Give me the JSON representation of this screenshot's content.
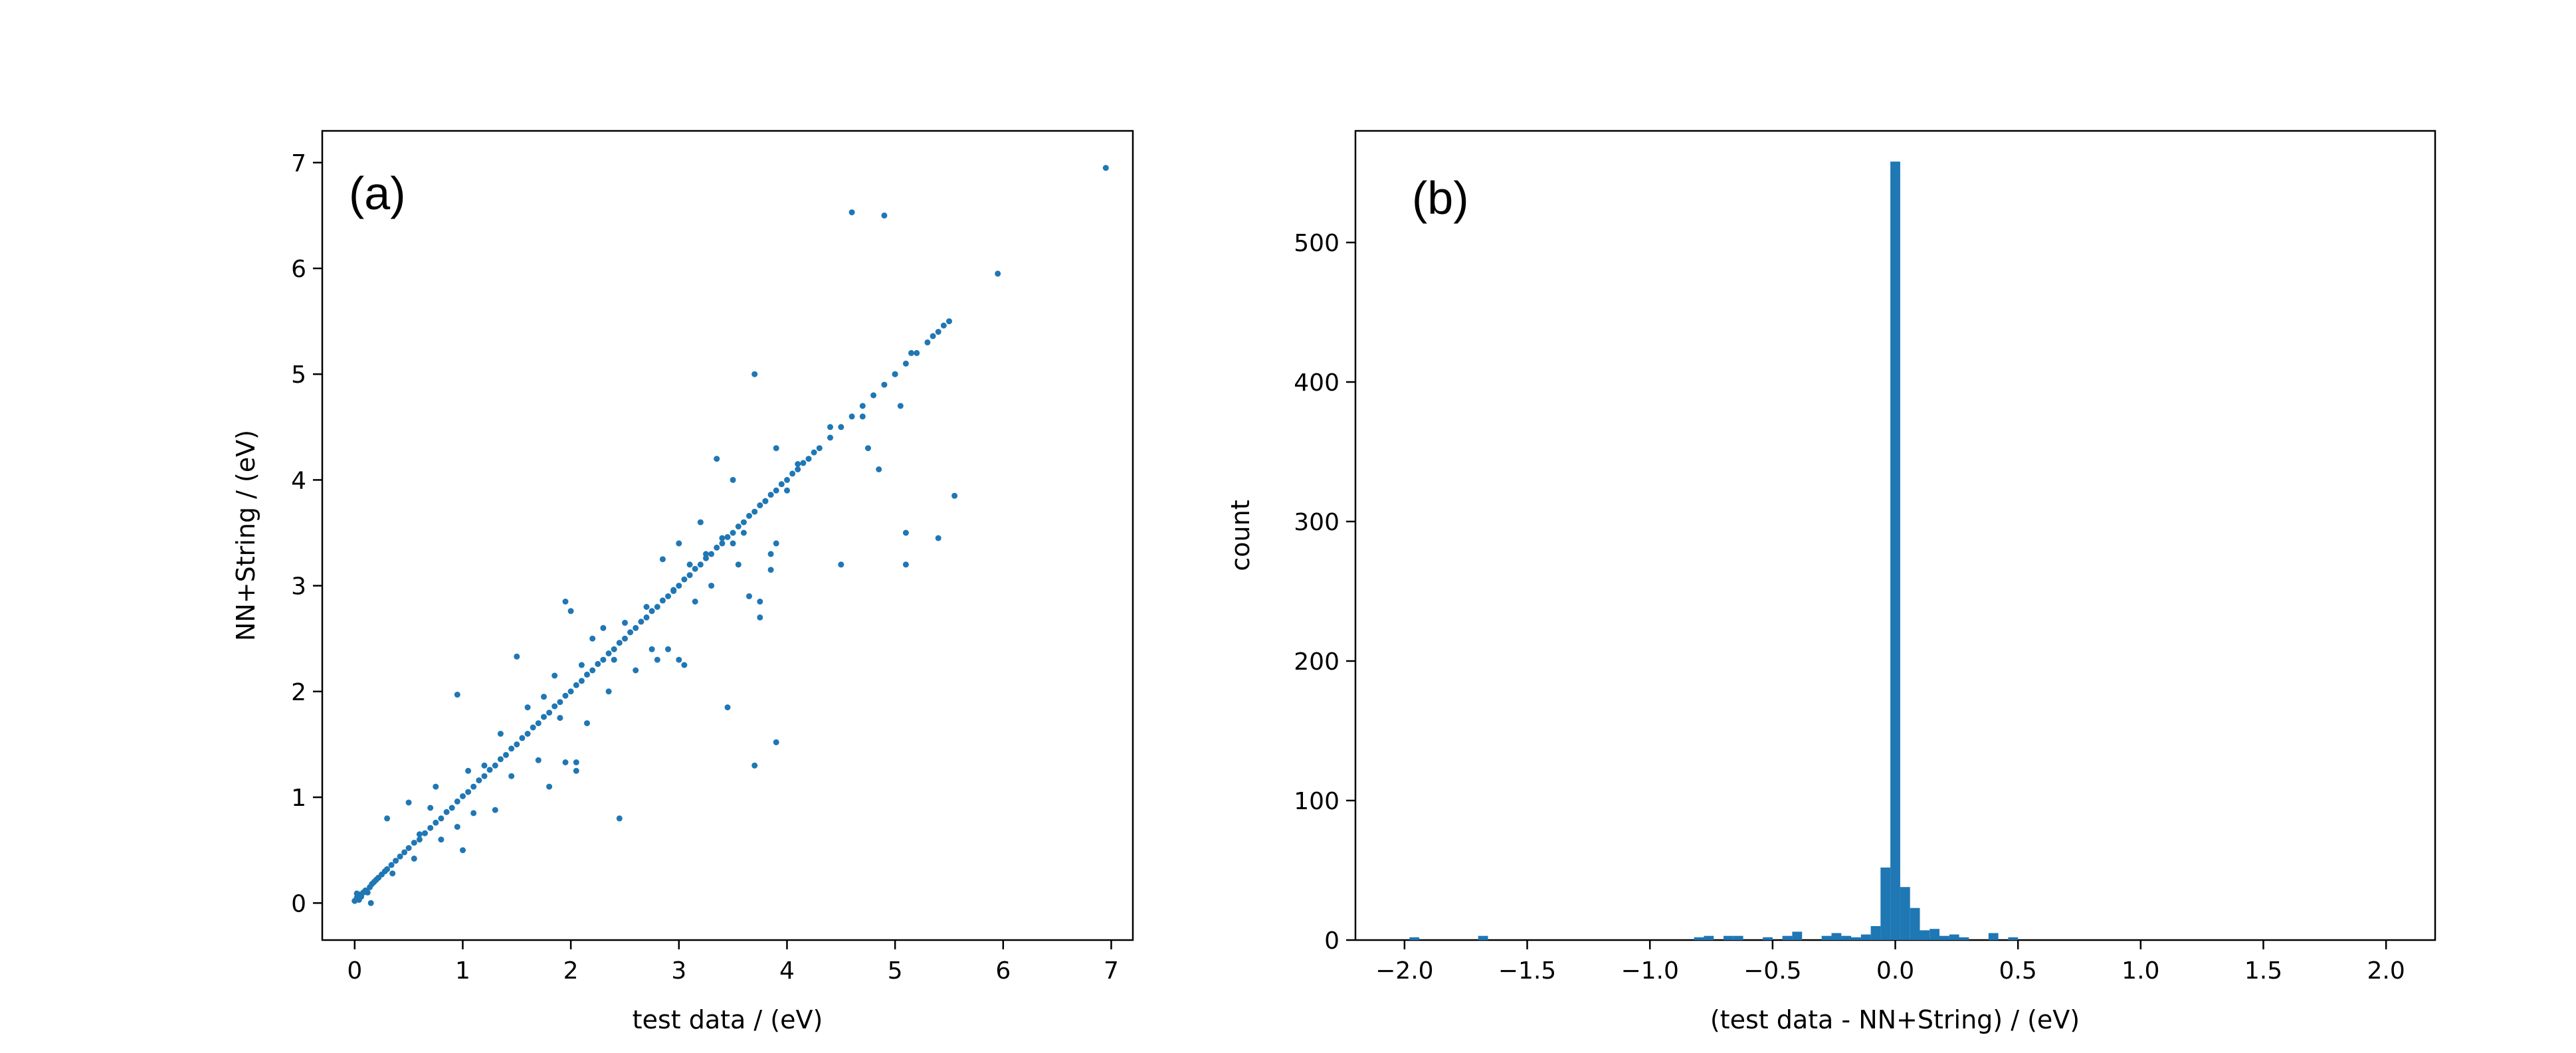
{
  "chart_data": [
    {
      "type": "scatter",
      "panel_label": "(a)",
      "xlabel": "test data / (eV)",
      "ylabel": "NN+String / (eV)",
      "xlim": [
        -0.3,
        7.2
      ],
      "ylim": [
        -0.35,
        7.3
      ],
      "xticks": [
        0,
        1,
        2,
        3,
        4,
        5,
        6,
        7
      ],
      "yticks": [
        0,
        1,
        2,
        3,
        4,
        5,
        6,
        7
      ],
      "xtick_labels": [
        "0",
        "1",
        "2",
        "3",
        "4",
        "5",
        "6",
        "7"
      ],
      "ytick_labels": [
        "0",
        "1",
        "2",
        "3",
        "4",
        "5",
        "6",
        "7"
      ],
      "grid": false,
      "marker_color": "#1f77b4",
      "series": [
        {
          "points": [
            [
              0.0,
              0.02
            ],
            [
              0.02,
              0.05
            ],
            [
              0.04,
              0.03
            ],
            [
              0.05,
              0.08
            ],
            [
              0.06,
              0.06
            ],
            [
              0.08,
              0.1
            ],
            [
              0.1,
              0.12
            ],
            [
              0.12,
              0.1
            ],
            [
              0.14,
              0.15
            ],
            [
              0.16,
              0.18
            ],
            [
              0.18,
              0.2
            ],
            [
              0.2,
              0.22
            ],
            [
              0.22,
              0.24
            ],
            [
              0.25,
              0.27
            ],
            [
              0.28,
              0.3
            ],
            [
              0.3,
              0.32
            ],
            [
              0.34,
              0.36
            ],
            [
              0.38,
              0.4
            ],
            [
              0.42,
              0.44
            ],
            [
              0.46,
              0.48
            ],
            [
              0.5,
              0.52
            ],
            [
              0.55,
              0.57
            ],
            [
              0.6,
              0.6
            ],
            [
              0.65,
              0.66
            ],
            [
              0.7,
              0.71
            ],
            [
              0.75,
              0.76
            ],
            [
              0.8,
              0.8
            ],
            [
              0.85,
              0.86
            ],
            [
              0.9,
              0.9
            ],
            [
              0.95,
              0.96
            ],
            [
              1.0,
              1.01
            ],
            [
              1.05,
              1.05
            ],
            [
              1.1,
              1.1
            ],
            [
              1.15,
              1.16
            ],
            [
              1.2,
              1.2
            ],
            [
              1.25,
              1.26
            ],
            [
              1.3,
              1.3
            ],
            [
              1.35,
              1.36
            ],
            [
              1.4,
              1.4
            ],
            [
              1.45,
              1.46
            ],
            [
              1.5,
              1.5
            ],
            [
              1.55,
              1.56
            ],
            [
              1.6,
              1.6
            ],
            [
              1.65,
              1.66
            ],
            [
              1.7,
              1.7
            ],
            [
              1.75,
              1.76
            ],
            [
              1.8,
              1.8
            ],
            [
              1.85,
              1.86
            ],
            [
              1.9,
              1.9
            ],
            [
              1.95,
              1.96
            ],
            [
              2.0,
              2.0
            ],
            [
              2.05,
              2.06
            ],
            [
              2.1,
              2.1
            ],
            [
              2.15,
              2.16
            ],
            [
              2.2,
              2.2
            ],
            [
              2.25,
              2.26
            ],
            [
              2.3,
              2.3
            ],
            [
              2.35,
              2.36
            ],
            [
              2.4,
              2.4
            ],
            [
              2.45,
              2.46
            ],
            [
              2.5,
              2.5
            ],
            [
              2.55,
              2.56
            ],
            [
              2.6,
              2.6
            ],
            [
              2.65,
              2.66
            ],
            [
              2.7,
              2.7
            ],
            [
              2.75,
              2.76
            ],
            [
              2.8,
              2.8
            ],
            [
              2.85,
              2.86
            ],
            [
              2.9,
              2.9
            ],
            [
              2.95,
              2.96
            ],
            [
              3.0,
              3.0
            ],
            [
              3.05,
              3.06
            ],
            [
              3.1,
              3.1
            ],
            [
              3.15,
              3.16
            ],
            [
              3.2,
              3.2
            ],
            [
              3.25,
              3.26
            ],
            [
              3.3,
              3.3
            ],
            [
              3.35,
              3.36
            ],
            [
              3.4,
              3.4
            ],
            [
              3.45,
              3.46
            ],
            [
              3.5,
              3.5
            ],
            [
              3.55,
              3.56
            ],
            [
              3.6,
              3.6
            ],
            [
              3.65,
              3.66
            ],
            [
              3.7,
              3.7
            ],
            [
              3.75,
              3.76
            ],
            [
              3.8,
              3.8
            ],
            [
              3.85,
              3.86
            ],
            [
              3.9,
              3.9
            ],
            [
              3.95,
              3.96
            ],
            [
              4.0,
              4.0
            ],
            [
              4.05,
              4.06
            ],
            [
              4.1,
              4.1
            ],
            [
              4.15,
              4.16
            ],
            [
              4.2,
              4.2
            ],
            [
              4.25,
              4.26
            ],
            [
              4.3,
              4.3
            ],
            [
              4.4,
              4.4
            ],
            [
              4.5,
              4.5
            ],
            [
              4.6,
              4.6
            ],
            [
              4.7,
              4.7
            ],
            [
              4.8,
              4.8
            ],
            [
              4.9,
              4.9
            ],
            [
              5.0,
              5.0
            ],
            [
              5.1,
              5.1
            ],
            [
              5.2,
              5.2
            ],
            [
              5.3,
              5.3
            ],
            [
              5.35,
              5.36
            ],
            [
              5.4,
              5.4
            ],
            [
              5.45,
              5.46
            ],
            [
              5.5,
              5.5
            ],
            [
              0.02,
              0.09
            ],
            [
              0.15,
              0.0
            ],
            [
              0.3,
              0.8
            ],
            [
              0.35,
              0.28
            ],
            [
              0.5,
              0.95
            ],
            [
              0.55,
              0.42
            ],
            [
              0.6,
              0.65
            ],
            [
              0.7,
              0.9
            ],
            [
              0.75,
              1.1
            ],
            [
              0.8,
              0.6
            ],
            [
              0.95,
              1.97
            ],
            [
              0.95,
              0.72
            ],
            [
              1.0,
              0.5
            ],
            [
              1.05,
              1.25
            ],
            [
              1.1,
              0.85
            ],
            [
              1.2,
              1.3
            ],
            [
              1.3,
              0.88
            ],
            [
              1.35,
              1.6
            ],
            [
              1.45,
              1.2
            ],
            [
              1.5,
              2.33
            ],
            [
              1.6,
              1.85
            ],
            [
              1.7,
              1.35
            ],
            [
              1.75,
              1.95
            ],
            [
              1.8,
              1.1
            ],
            [
              1.85,
              2.15
            ],
            [
              1.9,
              1.75
            ],
            [
              1.95,
              2.85
            ],
            [
              1.95,
              1.33
            ],
            [
              2.0,
              2.76
            ],
            [
              2.05,
              1.33
            ],
            [
              2.05,
              1.25
            ],
            [
              2.1,
              2.25
            ],
            [
              2.15,
              1.7
            ],
            [
              2.2,
              2.5
            ],
            [
              2.3,
              2.6
            ],
            [
              2.35,
              2.0
            ],
            [
              2.4,
              2.3
            ],
            [
              2.45,
              0.8
            ],
            [
              2.5,
              2.65
            ],
            [
              2.6,
              2.2
            ],
            [
              2.7,
              2.8
            ],
            [
              2.75,
              2.4
            ],
            [
              2.8,
              2.3
            ],
            [
              2.85,
              3.25
            ],
            [
              2.9,
              2.4
            ],
            [
              2.95,
              2.95
            ],
            [
              3.0,
              3.4
            ],
            [
              3.0,
              2.3
            ],
            [
              3.05,
              2.25
            ],
            [
              3.1,
              3.2
            ],
            [
              3.15,
              2.85
            ],
            [
              3.2,
              3.6
            ],
            [
              3.25,
              3.3
            ],
            [
              3.3,
              3.0
            ],
            [
              3.35,
              4.2
            ],
            [
              3.4,
              3.45
            ],
            [
              3.45,
              1.85
            ],
            [
              3.5,
              4.0
            ],
            [
              3.5,
              3.4
            ],
            [
              3.55,
              3.2
            ],
            [
              3.6,
              3.5
            ],
            [
              3.65,
              2.9
            ],
            [
              3.7,
              1.3
            ],
            [
              3.7,
              5.0
            ],
            [
              3.75,
              2.7
            ],
            [
              3.75,
              2.85
            ],
            [
              3.8,
              3.8
            ],
            [
              3.85,
              3.3
            ],
            [
              3.85,
              3.15
            ],
            [
              3.9,
              1.52
            ],
            [
              3.9,
              3.4
            ],
            [
              3.9,
              4.3
            ],
            [
              4.0,
              3.9
            ],
            [
              4.1,
              4.15
            ],
            [
              4.4,
              4.5
            ],
            [
              4.5,
              3.2
            ],
            [
              4.6,
              6.53
            ],
            [
              4.7,
              4.6
            ],
            [
              4.75,
              4.3
            ],
            [
              4.85,
              4.1
            ],
            [
              4.9,
              6.5
            ],
            [
              5.0,
              5.0
            ],
            [
              5.05,
              4.7
            ],
            [
              5.1,
              3.2
            ],
            [
              5.1,
              3.5
            ],
            [
              5.15,
              5.2
            ],
            [
              5.4,
              3.45
            ],
            [
              5.55,
              3.85
            ],
            [
              5.95,
              5.95
            ],
            [
              6.95,
              6.95
            ]
          ]
        }
      ]
    },
    {
      "type": "bar",
      "subtype": "histogram",
      "panel_label": "(b)",
      "xlabel": "(test data - NN+String) / (eV)",
      "ylabel": "count",
      "xlim": [
        -2.2,
        2.2
      ],
      "ylim": [
        0,
        580
      ],
      "xticks": [
        -2.0,
        -1.5,
        -1.0,
        -0.5,
        0.0,
        0.5,
        1.0,
        1.5,
        2.0
      ],
      "yticks": [
        0,
        100,
        200,
        300,
        400,
        500
      ],
      "xtick_labels": [
        "−2.0",
        "−1.5",
        "−1.0",
        "−0.5",
        "0.0",
        "0.5",
        "1.0",
        "1.5",
        "2.0"
      ],
      "ytick_labels": [
        "0",
        "100",
        "200",
        "300",
        "400",
        "500"
      ],
      "grid": false,
      "bar_color": "#1f77b4",
      "bin_width": 0.04,
      "bins": [
        {
          "left": -1.98,
          "count": 2
        },
        {
          "left": -1.7,
          "count": 3
        },
        {
          "left": -0.82,
          "count": 2
        },
        {
          "left": -0.78,
          "count": 3
        },
        {
          "left": -0.7,
          "count": 3
        },
        {
          "left": -0.66,
          "count": 3
        },
        {
          "left": -0.54,
          "count": 2
        },
        {
          "left": -0.46,
          "count": 3
        },
        {
          "left": -0.42,
          "count": 6
        },
        {
          "left": -0.3,
          "count": 3
        },
        {
          "left": -0.26,
          "count": 5
        },
        {
          "left": -0.22,
          "count": 3
        },
        {
          "left": -0.18,
          "count": 2
        },
        {
          "left": -0.14,
          "count": 4
        },
        {
          "left": -0.1,
          "count": 10
        },
        {
          "left": -0.06,
          "count": 52
        },
        {
          "left": -0.02,
          "count": 558
        },
        {
          "left": 0.02,
          "count": 38
        },
        {
          "left": 0.06,
          "count": 23
        },
        {
          "left": 0.1,
          "count": 7
        },
        {
          "left": 0.14,
          "count": 8
        },
        {
          "left": 0.18,
          "count": 3
        },
        {
          "left": 0.22,
          "count": 4
        },
        {
          "left": 0.26,
          "count": 2
        },
        {
          "left": 0.38,
          "count": 5
        },
        {
          "left": 0.46,
          "count": 2
        }
      ]
    }
  ]
}
